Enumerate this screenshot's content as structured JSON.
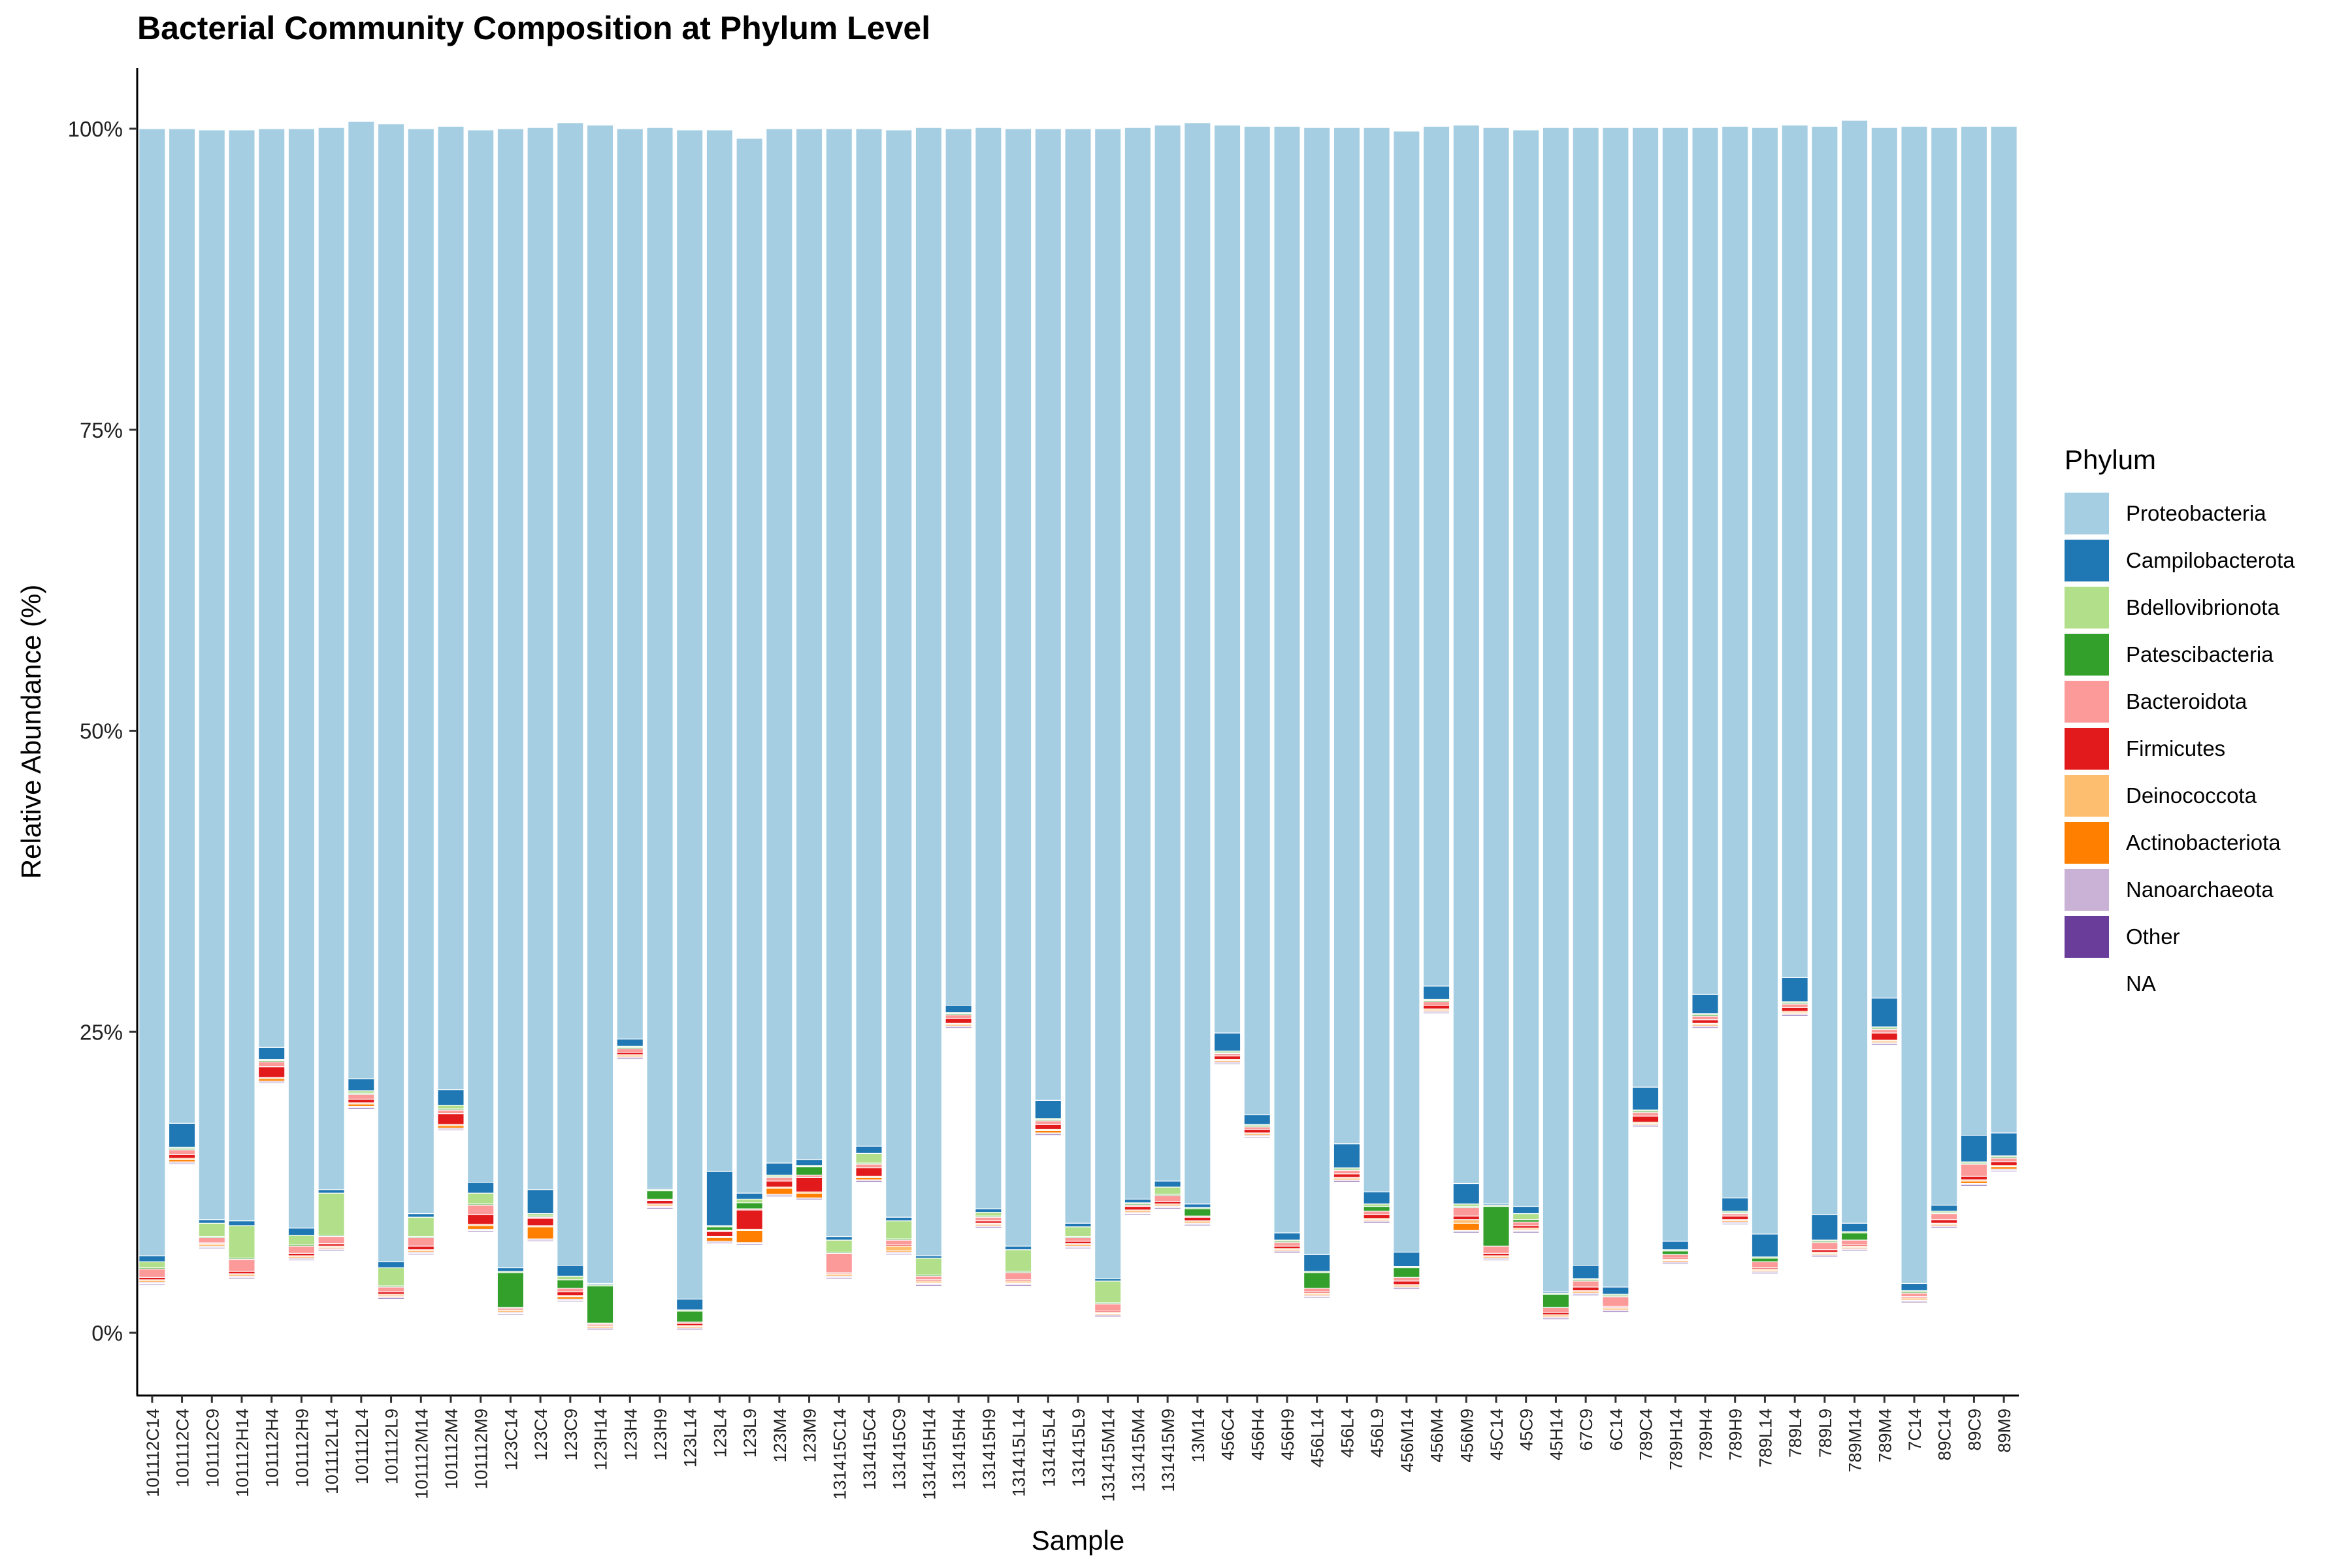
{
  "chart_data": {
    "type": "bar",
    "stacked": true,
    "title": "Bacterial Community Composition at Phylum Level",
    "xlabel": "Sample",
    "ylabel": "Relative Abundance (%)",
    "ylim": [
      0,
      100
    ],
    "yticks": [
      0,
      25,
      50,
      75,
      100
    ],
    "ytick_labels": [
      "0%",
      "25%",
      "50%",
      "75%",
      "100%"
    ],
    "grid": false,
    "legend": {
      "title": "Phylum",
      "position": "right"
    },
    "categories": [
      "101112C14",
      "101112C4",
      "101112C9",
      "101112H14",
      "101112H4",
      "101112H9",
      "101112L14",
      "101112L4",
      "101112L9",
      "101112M14",
      "101112M4",
      "101112M9",
      "123C14",
      "123C4",
      "123C9",
      "123H14",
      "123H4",
      "123H9",
      "123L14",
      "123L4",
      "123L9",
      "123M4",
      "123M9",
      "131415C14",
      "131415C4",
      "131415C9",
      "131415H14",
      "131415H4",
      "131415H9",
      "131415L14",
      "131415L4",
      "131415L9",
      "131415M14",
      "131415M4",
      "131415M9",
      "13M14",
      "456C4",
      "456H4",
      "456H9",
      "456L14",
      "456L4",
      "456L9",
      "456M14",
      "456M4",
      "456M9",
      "45C14",
      "45C9",
      "45H14",
      "67C9",
      "6C14",
      "789C4",
      "789H14",
      "789H4",
      "789H9",
      "789L14",
      "789L4",
      "789L9",
      "789M14",
      "789M4",
      "7C14",
      "89C14",
      "89C9",
      "89M9"
    ],
    "series": [
      {
        "name": "NA",
        "color": "#ffffff",
        "values": [
          4.0,
          14.0,
          7.0,
          4.5,
          20.7,
          6.0,
          6.8,
          18.6,
          2.8,
          6.5,
          16.8,
          8.4,
          1.5,
          7.6,
          2.6,
          0.2,
          22.7,
          10.3,
          0.2,
          7.4,
          7.3,
          11.3,
          11.0,
          4.5,
          12.5,
          6.5,
          3.9,
          25.3,
          8.7,
          3.9,
          16.4,
          7.0,
          1.3,
          9.8,
          10.3,
          8.9,
          22.3,
          16.2,
          6.6,
          2.9,
          12.5,
          9.1,
          3.6,
          26.5,
          8.3,
          6.0,
          8.3,
          1.1,
          3.1,
          1.7,
          17.1,
          5.7,
          25.3,
          9.0,
          4.9,
          26.3,
          6.3,
          6.8,
          23.9,
          2.5,
          8.7,
          12.2,
          13.4
        ]
      },
      {
        "name": "Other",
        "color": "#6a3d9a",
        "values": [
          0.1,
          0.1,
          0.1,
          0.1,
          0.1,
          0.1,
          0.1,
          0.1,
          0.1,
          0.1,
          0.1,
          0.1,
          0.1,
          0.1,
          0.1,
          0.1,
          0.1,
          0.1,
          0.1,
          0.1,
          0.1,
          0.1,
          0.1,
          0.1,
          0.1,
          0.1,
          0.1,
          0.1,
          0.1,
          0.1,
          0.1,
          0.1,
          0.1,
          0.1,
          0.1,
          0.1,
          0.1,
          0.1,
          0.1,
          0.1,
          0.1,
          0.1,
          0.1,
          0.1,
          0.1,
          0.1,
          0.1,
          0.1,
          0.1,
          0.1,
          0.1,
          0.1,
          0.1,
          0.1,
          0.1,
          0.1,
          0.1,
          0.1,
          0.1,
          0.1,
          0.1,
          0.1,
          0.1
        ]
      },
      {
        "name": "Nanoarchaeota",
        "color": "#cab2d6",
        "values": [
          0.1,
          0.1,
          0.1,
          0.1,
          0.1,
          0.1,
          0.1,
          0.1,
          0.1,
          0.1,
          0.1,
          0.1,
          0.1,
          0.1,
          0.1,
          0.1,
          0.1,
          0.1,
          0.1,
          0.1,
          0.1,
          0.1,
          0.1,
          0.1,
          0.1,
          0.1,
          0.1,
          0.1,
          0.1,
          0.1,
          0.1,
          0.1,
          0.1,
          0.1,
          0.1,
          0.1,
          0.1,
          0.1,
          0.1,
          0.1,
          0.1,
          0.1,
          0.1,
          0.1,
          0.1,
          0.1,
          0.1,
          0.1,
          0.1,
          0.1,
          0.1,
          0.1,
          0.1,
          0.1,
          0.1,
          0.1,
          0.1,
          0.1,
          0.1,
          0.1,
          0.1,
          0.1,
          0.1
        ]
      },
      {
        "name": "Actinobacteriota",
        "color": "#ff7f00",
        "values": [
          0.1,
          0.2,
          0.1,
          0.1,
          0.2,
          0.1,
          0.1,
          0.2,
          0.1,
          0.1,
          0.2,
          0.3,
          0.1,
          1.0,
          0.2,
          0.1,
          0.1,
          0.1,
          0.1,
          0.3,
          1.0,
          0.5,
          0.4,
          0.1,
          0.2,
          0.1,
          0.1,
          0.1,
          0.1,
          0.1,
          0.2,
          0.1,
          0.1,
          0.1,
          0.1,
          0.1,
          0.1,
          0.1,
          0.1,
          0.1,
          0.1,
          0.1,
          0.1,
          0.1,
          0.6,
          0.1,
          0.1,
          0.1,
          0.1,
          0.1,
          0.1,
          0.1,
          0.1,
          0.1,
          0.1,
          0.1,
          0.1,
          0.1,
          0.1,
          0.1,
          0.1,
          0.2,
          0.2
        ]
      },
      {
        "name": "Deinococcota",
        "color": "#fdbf6f",
        "values": [
          0.1,
          0.1,
          0.1,
          0.1,
          0.1,
          0.1,
          0.1,
          0.1,
          0.1,
          0.1,
          0.1,
          0.1,
          0.1,
          0.1,
          0.1,
          0.1,
          0.1,
          0.1,
          0.1,
          0.1,
          0.1,
          0.1,
          0.1,
          0.1,
          0.1,
          0.4,
          0.1,
          0.1,
          0.1,
          0.1,
          0.1,
          0.1,
          0.1,
          0.1,
          0.1,
          0.1,
          0.1,
          0.1,
          0.1,
          0.1,
          0.1,
          0.1,
          0.1,
          0.1,
          0.3,
          0.1,
          0.1,
          0.1,
          0.1,
          0.1,
          0.1,
          0.1,
          0.1,
          0.1,
          0.1,
          0.1,
          0.1,
          0.1,
          0.1,
          0.1,
          0.1,
          0.1,
          0.1
        ]
      },
      {
        "name": "Firmicutes",
        "color": "#e31a1c",
        "values": [
          0.2,
          0.3,
          0.1,
          0.2,
          0.9,
          0.2,
          0.2,
          0.3,
          0.2,
          0.3,
          0.9,
          0.8,
          0.1,
          0.6,
          0.3,
          0.1,
          0.2,
          0.3,
          0.2,
          0.4,
          1.6,
          0.5,
          1.2,
          0.1,
          0.7,
          0.1,
          0.1,
          0.4,
          0.2,
          0.1,
          0.4,
          0.2,
          0.1,
          0.3,
          0.2,
          0.3,
          0.3,
          0.3,
          0.2,
          0.1,
          0.3,
          0.3,
          0.3,
          0.3,
          0.3,
          0.2,
          0.2,
          0.2,
          0.3,
          0.1,
          0.5,
          0.1,
          0.3,
          0.3,
          0.1,
          0.3,
          0.2,
          0.1,
          0.6,
          0.1,
          0.3,
          0.3,
          0.3
        ]
      },
      {
        "name": "Bacteroidota",
        "color": "#fb9a99",
        "values": [
          0.7,
          0.4,
          0.4,
          1.0,
          0.4,
          0.6,
          0.6,
          0.4,
          0.4,
          0.7,
          0.3,
          0.8,
          0.1,
          0.1,
          0.3,
          0.1,
          0.3,
          0.1,
          0.1,
          0.1,
          0.1,
          0.3,
          0.2,
          1.6,
          0.3,
          0.4,
          0.3,
          0.3,
          0.3,
          0.6,
          0.3,
          0.3,
          0.6,
          0.1,
          0.5,
          0.1,
          0.2,
          0.2,
          0.3,
          0.3,
          0.3,
          0.3,
          0.3,
          0.3,
          0.7,
          0.6,
          0.3,
          0.4,
          0.5,
          0.8,
          0.3,
          0.3,
          0.3,
          0.2,
          0.5,
          0.3,
          0.6,
          0.4,
          0.3,
          0.3,
          0.5,
          1.0,
          0.3
        ]
      },
      {
        "name": "Patescibacteria",
        "color": "#33a02c",
        "values": [
          0.1,
          0.1,
          0.1,
          0.1,
          0.1,
          0.1,
          0.1,
          0.1,
          0.1,
          0.1,
          0.1,
          0.1,
          2.9,
          0.1,
          0.7,
          3.1,
          0.1,
          0.7,
          0.9,
          0.3,
          0.5,
          0.1,
          0.7,
          0.1,
          0.1,
          0.1,
          0.1,
          0.1,
          0.1,
          0.1,
          0.1,
          0.1,
          0.1,
          0.1,
          0.1,
          0.6,
          0.1,
          0.1,
          0.1,
          1.3,
          0.1,
          0.4,
          0.8,
          0.1,
          0.1,
          3.3,
          0.2,
          1.1,
          0.1,
          0.1,
          0.1,
          0.3,
          0.1,
          0.1,
          0.3,
          0.1,
          0.1,
          0.6,
          0.1,
          0.1,
          0.1,
          0.1,
          0.1
        ]
      },
      {
        "name": "Bdellovibrionota",
        "color": "#b2df8a",
        "values": [
          0.5,
          0.1,
          1.1,
          2.7,
          0.1,
          0.8,
          3.5,
          0.2,
          1.5,
          1.6,
          0.3,
          0.9,
          0.1,
          0.2,
          0.3,
          0.1,
          0.1,
          0.1,
          0.1,
          0.1,
          0.3,
          0.1,
          0.1,
          1.0,
          0.8,
          1.5,
          1.4,
          0.1,
          0.3,
          1.8,
          0.1,
          0.8,
          1.8,
          0.1,
          0.6,
          0.1,
          0.1,
          0.1,
          0.1,
          0.1,
          0.1,
          0.2,
          0.1,
          0.1,
          0.2,
          0.1,
          0.5,
          0.1,
          0.1,
          0.1,
          0.1,
          0.1,
          0.1,
          0.1,
          0.1,
          0.1,
          0.1,
          0.1,
          0.1,
          0.1,
          0.1,
          0.1,
          0.1
        ]
      },
      {
        "name": "Campilobacterota",
        "color": "#1f78b4",
        "values": [
          0.5,
          2.0,
          0.3,
          0.4,
          1.0,
          0.6,
          0.3,
          1.0,
          0.5,
          0.3,
          1.3,
          0.9,
          0.3,
          2.0,
          0.9,
          0.1,
          0.6,
          0.1,
          0.9,
          4.5,
          0.5,
          1.0,
          0.5,
          0.3,
          0.6,
          0.3,
          0.2,
          0.6,
          0.3,
          0.3,
          1.5,
          0.3,
          0.2,
          0.3,
          0.5,
          0.3,
          1.5,
          0.8,
          0.6,
          1.4,
          2.0,
          1.0,
          1.2,
          1.1,
          1.7,
          0.1,
          0.6,
          0.1,
          1.1,
          0.6,
          1.9,
          0.7,
          1.6,
          1.1,
          1.9,
          2.0,
          2.1,
          0.7,
          2.4,
          0.6,
          0.5,
          2.2,
          1.9
        ]
      },
      {
        "name": "Proteobacteria",
        "color": "#a6cee3",
        "values": [
          93.6,
          82.6,
          90.5,
          90.6,
          76.3,
          91.3,
          88.2,
          79.5,
          94.5,
          90.1,
          80.0,
          87.4,
          94.6,
          88.2,
          94.9,
          96.2,
          75.6,
          88.1,
          97.1,
          86.5,
          87.6,
          85.9,
          85.6,
          92.0,
          84.5,
          90.3,
          93.7,
          72.8,
          89.8,
          92.8,
          80.7,
          90.9,
          95.5,
          89.0,
          87.7,
          89.8,
          75.4,
          82.1,
          91.9,
          93.6,
          84.4,
          88.4,
          93.1,
          71.4,
          87.9,
          89.4,
          89.4,
          96.7,
          94.5,
          96.3,
          79.7,
          92.5,
          72.0,
          89.0,
          91.9,
          70.8,
          90.4,
          91.6,
          72.3,
          96.1,
          89.5,
          83.8,
          83.6
        ]
      }
    ]
  }
}
